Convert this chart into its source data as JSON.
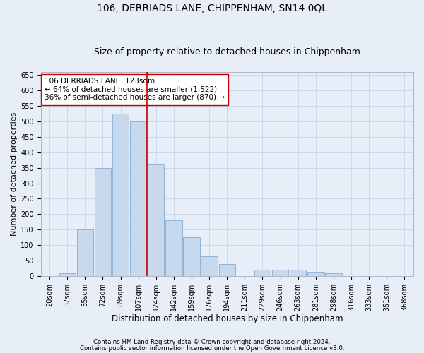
{
  "title": "106, DERRIADS LANE, CHIPPENHAM, SN14 0QL",
  "subtitle": "Size of property relative to detached houses in Chippenham",
  "xlabel": "Distribution of detached houses by size in Chippenham",
  "ylabel": "Number of detached properties",
  "categories": [
    "20sqm",
    "37sqm",
    "55sqm",
    "72sqm",
    "89sqm",
    "107sqm",
    "124sqm",
    "142sqm",
    "159sqm",
    "176sqm",
    "194sqm",
    "211sqm",
    "229sqm",
    "246sqm",
    "263sqm",
    "281sqm",
    "298sqm",
    "316sqm",
    "333sqm",
    "351sqm",
    "368sqm"
  ],
  "values": [
    0,
    10,
    150,
    350,
    525,
    500,
    360,
    180,
    125,
    65,
    40,
    0,
    20,
    20,
    20,
    15,
    10,
    0,
    0,
    0,
    0
  ],
  "bar_color": "#c8d9ee",
  "bar_edge_color": "#8fb4d9",
  "grid_color": "#c0d0e8",
  "background_color": "#e8eef8",
  "vline_x": 5.5,
  "vline_color": "#cc0000",
  "annotation_text": "106 DERRIADS LANE: 123sqm\n← 64% of detached houses are smaller (1,522)\n36% of semi-detached houses are larger (870) →",
  "annotation_box_facecolor": "#ffffff",
  "annotation_box_edge": "#cc0000",
  "ylim": [
    0,
    660
  ],
  "yticks": [
    0,
    50,
    100,
    150,
    200,
    250,
    300,
    350,
    400,
    450,
    500,
    550,
    600,
    650
  ],
  "footnote1": "Contains HM Land Registry data © Crown copyright and database right 2024.",
  "footnote2": "Contains public sector information licensed under the Open Government Licence v3.0.",
  "title_fontsize": 10,
  "subtitle_fontsize": 9,
  "xlabel_fontsize": 8.5,
  "ylabel_fontsize": 8,
  "tick_fontsize": 7,
  "annot_fontsize": 7.5,
  "footnote_fontsize": 6.2
}
